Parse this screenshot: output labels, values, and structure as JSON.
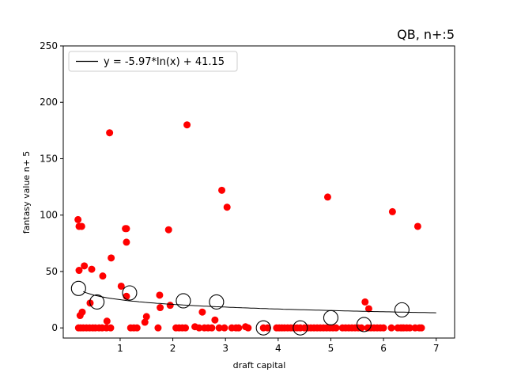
{
  "chart_data": {
    "type": "scatter",
    "title": "QB, n+:5",
    "xlabel": "draft capital",
    "ylabel": "fantasy value n+ 5",
    "xlim": [
      -0.08,
      7.35
    ],
    "ylim": [
      -9,
      250
    ],
    "xticks": [
      1,
      2,
      3,
      4,
      5,
      6,
      7
    ],
    "yticks": [
      0,
      50,
      100,
      150,
      200,
      250
    ],
    "legend": {
      "position": "top-left",
      "entries": [
        "y = -5.97*ln(x) + 41.15"
      ]
    },
    "fit": {
      "label": "y = -5.97*ln(x) + 41.15",
      "color": "#000000",
      "x_range": [
        0.3,
        7.0
      ]
    },
    "colors": {
      "points": "#ff0000",
      "bins": "#000000",
      "fit": "#000000"
    },
    "points": [
      [
        0.2,
        96
      ],
      [
        0.22,
        90
      ],
      [
        0.27,
        90
      ],
      [
        0.28,
        14
      ],
      [
        0.24,
        11
      ],
      [
        0.22,
        51
      ],
      [
        0.32,
        55
      ],
      [
        0.46,
        52
      ],
      [
        0.43,
        22
      ],
      [
        0.21,
        0
      ],
      [
        0.25,
        0
      ],
      [
        0.3,
        0
      ],
      [
        0.36,
        0
      ],
      [
        0.42,
        0
      ],
      [
        0.48,
        0
      ],
      [
        0.53,
        0
      ],
      [
        0.6,
        0
      ],
      [
        0.66,
        0
      ],
      [
        0.74,
        0
      ],
      [
        0.82,
        0
      ],
      [
        0.67,
        46
      ],
      [
        0.8,
        173
      ],
      [
        0.83,
        62
      ],
      [
        0.75,
        6
      ],
      [
        1.02,
        37
      ],
      [
        1.1,
        88
      ],
      [
        1.12,
        88
      ],
      [
        1.12,
        76
      ],
      [
        1.12,
        28
      ],
      [
        1.2,
        0
      ],
      [
        1.26,
        0
      ],
      [
        1.32,
        0
      ],
      [
        1.47,
        5
      ],
      [
        1.5,
        10
      ],
      [
        1.72,
        0
      ],
      [
        1.75,
        29
      ],
      [
        1.76,
        18
      ],
      [
        1.92,
        87
      ],
      [
        1.95,
        20
      ],
      [
        2.06,
        0
      ],
      [
        2.12,
        0
      ],
      [
        2.18,
        0
      ],
      [
        2.24,
        0
      ],
      [
        2.27,
        180
      ],
      [
        2.42,
        1
      ],
      [
        2.5,
        0
      ],
      [
        2.56,
        14
      ],
      [
        2.6,
        0
      ],
      [
        2.67,
        0
      ],
      [
        2.74,
        0
      ],
      [
        2.8,
        7
      ],
      [
        2.88,
        0
      ],
      [
        2.93,
        122
      ],
      [
        2.98,
        0
      ],
      [
        3.03,
        107
      ],
      [
        3.12,
        0
      ],
      [
        3.2,
        0
      ],
      [
        3.25,
        0
      ],
      [
        3.38,
        1
      ],
      [
        3.43,
        0
      ],
      [
        3.72,
        0
      ],
      [
        3.8,
        0
      ],
      [
        3.97,
        0
      ],
      [
        4.02,
        0
      ],
      [
        4.07,
        0
      ],
      [
        4.12,
        0
      ],
      [
        4.18,
        0
      ],
      [
        4.24,
        0
      ],
      [
        4.3,
        0
      ],
      [
        4.36,
        0
      ],
      [
        4.42,
        0
      ],
      [
        4.5,
        0
      ],
      [
        4.56,
        0
      ],
      [
        4.62,
        0
      ],
      [
        4.68,
        0
      ],
      [
        4.74,
        0
      ],
      [
        4.8,
        0
      ],
      [
        4.86,
        0
      ],
      [
        4.92,
        0
      ],
      [
        4.94,
        116
      ],
      [
        4.98,
        0
      ],
      [
        5.04,
        0
      ],
      [
        5.1,
        0
      ],
      [
        5.22,
        0
      ],
      [
        5.28,
        0
      ],
      [
        5.34,
        0
      ],
      [
        5.4,
        0
      ],
      [
        5.46,
        0
      ],
      [
        5.52,
        0
      ],
      [
        5.58,
        0
      ],
      [
        5.65,
        23
      ],
      [
        5.72,
        17
      ],
      [
        5.7,
        0
      ],
      [
        5.76,
        0
      ],
      [
        5.82,
        0
      ],
      [
        5.88,
        0
      ],
      [
        5.94,
        0
      ],
      [
        6.0,
        0
      ],
      [
        6.15,
        0
      ],
      [
        6.17,
        103
      ],
      [
        6.27,
        0
      ],
      [
        6.33,
        0
      ],
      [
        6.38,
        0
      ],
      [
        6.44,
        0
      ],
      [
        6.5,
        0
      ],
      [
        6.6,
        0
      ],
      [
        6.65,
        90
      ],
      [
        6.68,
        0
      ],
      [
        6.72,
        0
      ]
    ],
    "bin_means": [
      [
        0.21,
        35
      ],
      [
        0.56,
        23
      ],
      [
        1.18,
        31
      ],
      [
        2.2,
        24
      ],
      [
        2.83,
        23
      ],
      [
        3.72,
        0
      ],
      [
        4.42,
        0
      ],
      [
        5.0,
        9
      ],
      [
        5.63,
        3
      ],
      [
        6.35,
        16
      ]
    ]
  }
}
